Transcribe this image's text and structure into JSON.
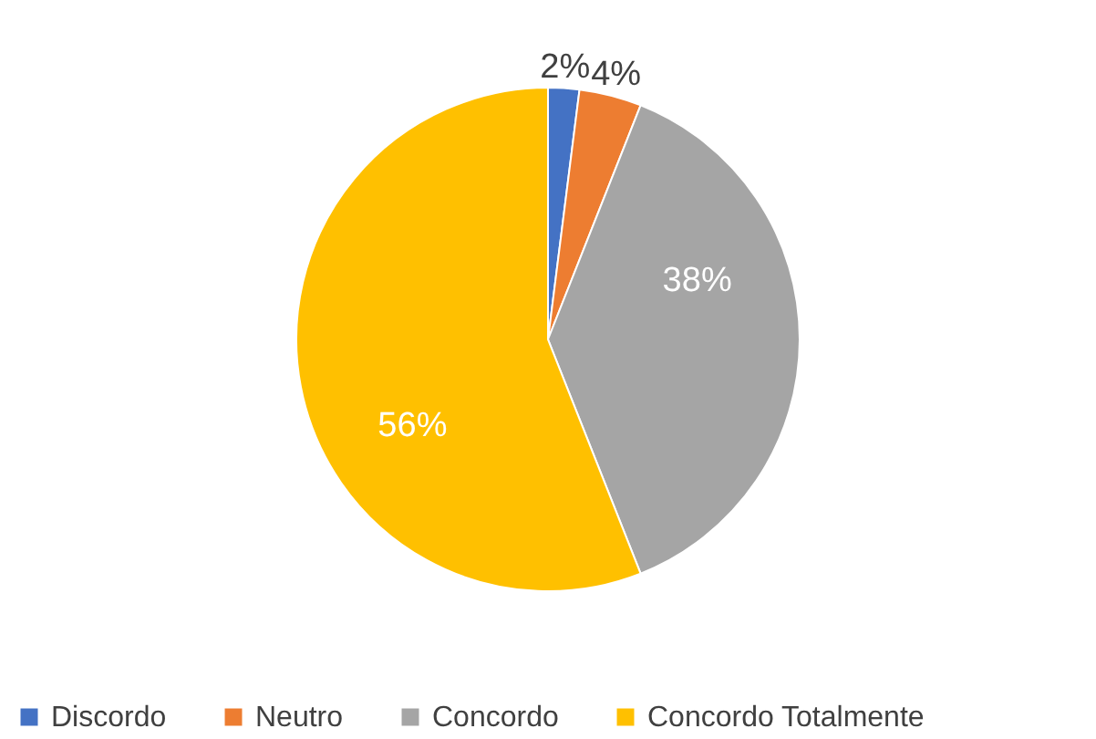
{
  "chart_data": {
    "type": "pie",
    "categories": [
      "Discordo",
      "Neutro",
      "Concordo",
      "Concordo Totalmente"
    ],
    "values": [
      2,
      4,
      38,
      56
    ],
    "colors": [
      "#4472c4",
      "#ed7d31",
      "#a5a5a5",
      "#ffc000"
    ],
    "value_labels": [
      "2%",
      "4%",
      "38%",
      "56%"
    ],
    "legend": "bottom"
  }
}
